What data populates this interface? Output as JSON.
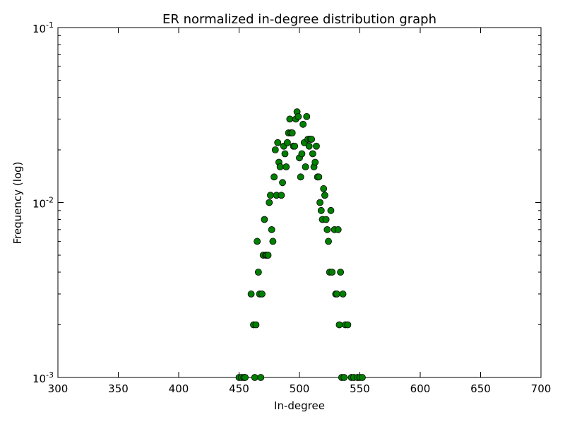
{
  "chart_data": {
    "type": "scatter",
    "title": "ER normalized in-degree distribution graph",
    "xlabel": "In-degree",
    "ylabel": "Frequency (log)",
    "xlim": [
      300,
      700
    ],
    "ylim": [
      0.001,
      0.1
    ],
    "yscale": "log",
    "grid": false,
    "marker_color": "#008000",
    "marker_edge_color": "#000000",
    "x_ticks": [
      {
        "value": 300,
        "label": "300"
      },
      {
        "value": 350,
        "label": "350"
      },
      {
        "value": 400,
        "label": "400"
      },
      {
        "value": 450,
        "label": "450"
      },
      {
        "value": 500,
        "label": "500"
      },
      {
        "value": 550,
        "label": "550"
      },
      {
        "value": 600,
        "label": "600"
      },
      {
        "value": 650,
        "label": "650"
      },
      {
        "value": 700,
        "label": "700"
      }
    ],
    "y_ticks": [
      {
        "value": 0.1,
        "base": "10",
        "exp": "-1"
      },
      {
        "value": 0.01,
        "base": "10",
        "exp": "-2"
      },
      {
        "value": 0.001,
        "base": "10",
        "exp": "-3"
      }
    ],
    "points": [
      {
        "x": 450,
        "y": 0.001
      },
      {
        "x": 452,
        "y": 0.001
      },
      {
        "x": 454,
        "y": 0.001
      },
      {
        "x": 455,
        "y": 0.001
      },
      {
        "x": 460,
        "y": 0.003
      },
      {
        "x": 462,
        "y": 0.002
      },
      {
        "x": 463,
        "y": 0.001
      },
      {
        "x": 464,
        "y": 0.002
      },
      {
        "x": 465,
        "y": 0.006
      },
      {
        "x": 466,
        "y": 0.004
      },
      {
        "x": 467,
        "y": 0.003
      },
      {
        "x": 468,
        "y": 0.001
      },
      {
        "x": 469,
        "y": 0.003
      },
      {
        "x": 470,
        "y": 0.005
      },
      {
        "x": 471,
        "y": 0.008
      },
      {
        "x": 472,
        "y": 0.005
      },
      {
        "x": 473,
        "y": 0.005
      },
      {
        "x": 474,
        "y": 0.005
      },
      {
        "x": 475,
        "y": 0.01
      },
      {
        "x": 476,
        "y": 0.011
      },
      {
        "x": 477,
        "y": 0.007
      },
      {
        "x": 478,
        "y": 0.006
      },
      {
        "x": 479,
        "y": 0.014
      },
      {
        "x": 480,
        "y": 0.02
      },
      {
        "x": 481,
        "y": 0.011
      },
      {
        "x": 482,
        "y": 0.022
      },
      {
        "x": 483,
        "y": 0.017
      },
      {
        "x": 484,
        "y": 0.016
      },
      {
        "x": 485,
        "y": 0.011
      },
      {
        "x": 486,
        "y": 0.013
      },
      {
        "x": 487,
        "y": 0.021
      },
      {
        "x": 488,
        "y": 0.019
      },
      {
        "x": 489,
        "y": 0.016
      },
      {
        "x": 490,
        "y": 0.022
      },
      {
        "x": 491,
        "y": 0.025
      },
      {
        "x": 492,
        "y": 0.03
      },
      {
        "x": 493,
        "y": 0.025
      },
      {
        "x": 494,
        "y": 0.025
      },
      {
        "x": 495,
        "y": 0.021
      },
      {
        "x": 496,
        "y": 0.021
      },
      {
        "x": 497,
        "y": 0.03
      },
      {
        "x": 498,
        "y": 0.033
      },
      {
        "x": 499,
        "y": 0.031
      },
      {
        "x": 500,
        "y": 0.018
      },
      {
        "x": 501,
        "y": 0.014
      },
      {
        "x": 502,
        "y": 0.019
      },
      {
        "x": 503,
        "y": 0.028
      },
      {
        "x": 504,
        "y": 0.022
      },
      {
        "x": 505,
        "y": 0.016
      },
      {
        "x": 506,
        "y": 0.031
      },
      {
        "x": 507,
        "y": 0.023
      },
      {
        "x": 508,
        "y": 0.021
      },
      {
        "x": 509,
        "y": 0.023
      },
      {
        "x": 510,
        "y": 0.023
      },
      {
        "x": 511,
        "y": 0.019
      },
      {
        "x": 512,
        "y": 0.016
      },
      {
        "x": 513,
        "y": 0.017
      },
      {
        "x": 514,
        "y": 0.021
      },
      {
        "x": 515,
        "y": 0.014
      },
      {
        "x": 516,
        "y": 0.014
      },
      {
        "x": 517,
        "y": 0.01
      },
      {
        "x": 518,
        "y": 0.009
      },
      {
        "x": 519,
        "y": 0.008
      },
      {
        "x": 520,
        "y": 0.012
      },
      {
        "x": 521,
        "y": 0.011
      },
      {
        "x": 522,
        "y": 0.008
      },
      {
        "x": 523,
        "y": 0.007
      },
      {
        "x": 524,
        "y": 0.006
      },
      {
        "x": 525,
        "y": 0.004
      },
      {
        "x": 526,
        "y": 0.009
      },
      {
        "x": 527,
        "y": 0.004
      },
      {
        "x": 529,
        "y": 0.007
      },
      {
        "x": 530,
        "y": 0.003
      },
      {
        "x": 531,
        "y": 0.003
      },
      {
        "x": 532,
        "y": 0.007
      },
      {
        "x": 533,
        "y": 0.002
      },
      {
        "x": 534,
        "y": 0.004
      },
      {
        "x": 535,
        "y": 0.001
      },
      {
        "x": 536,
        "y": 0.003
      },
      {
        "x": 537,
        "y": 0.001
      },
      {
        "x": 538,
        "y": 0.002
      },
      {
        "x": 540,
        "y": 0.002
      },
      {
        "x": 543,
        "y": 0.001
      },
      {
        "x": 545,
        "y": 0.001
      },
      {
        "x": 548,
        "y": 0.001
      },
      {
        "x": 550,
        "y": 0.001
      },
      {
        "x": 552,
        "y": 0.001
      }
    ]
  }
}
